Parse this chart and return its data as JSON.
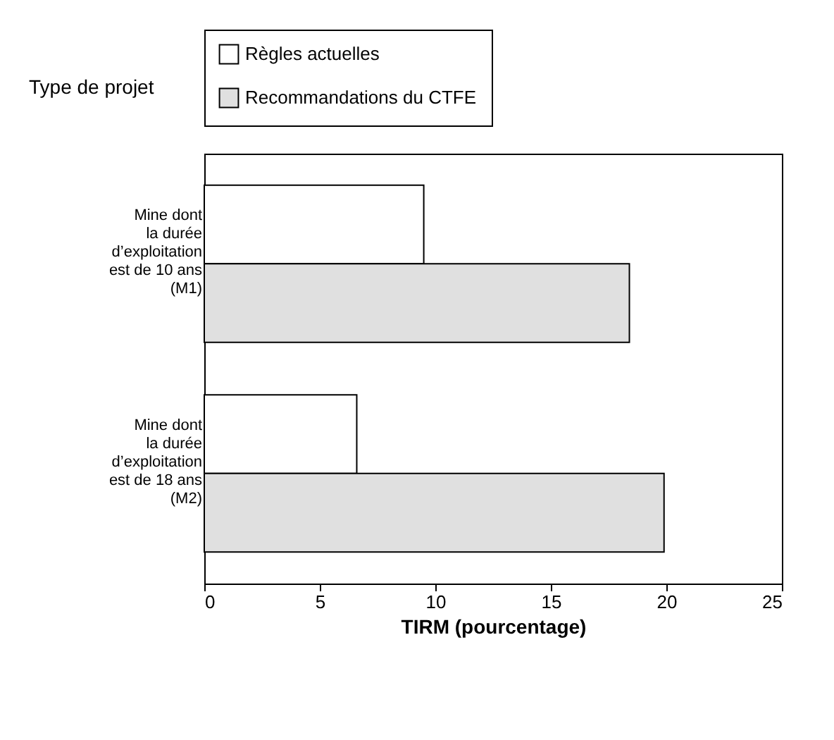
{
  "chart_data": {
    "type": "bar",
    "orientation": "horizontal",
    "ylabel": "Type de projet",
    "xlabel": "TIRM (pourcentage)",
    "categories": [
      "Mine dont\nla durée\nd’exploitation\nest de 10 ans\n(M1)",
      "Mine dont\nla durée\nd’exploitation\nest de 18 ans\n(M2)"
    ],
    "series": [
      {
        "name": "Règles actuelles",
        "color": "#ffffff",
        "values": [
          9.5,
          6.6
        ]
      },
      {
        "name": "Recommandations du CTFE",
        "color": "#e0e0e0",
        "values": [
          18.4,
          19.9
        ]
      }
    ],
    "xlim": [
      0,
      25
    ],
    "xticks": [
      0,
      5,
      10,
      15,
      20,
      25
    ],
    "grid": false,
    "legend": "top"
  }
}
